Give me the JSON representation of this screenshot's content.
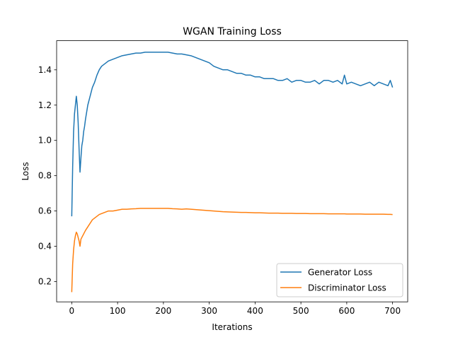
{
  "chart_data": {
    "type": "line",
    "title": "WGAN Training Loss",
    "xlabel": "Iterations",
    "ylabel": "Loss",
    "xlim": [
      -33,
      733
    ],
    "ylim": [
      0.085,
      1.565
    ],
    "xticks": [
      0,
      100,
      200,
      300,
      400,
      500,
      600,
      700
    ],
    "yticks": [
      0.2,
      0.4,
      0.6,
      0.8,
      1.0,
      1.2,
      1.4
    ],
    "ytick_labels": [
      "0.2",
      "0.4",
      "0.6",
      "0.8",
      "1.0",
      "1.2",
      "1.4"
    ],
    "grid": false,
    "legend_position": "lower right",
    "series": [
      {
        "name": "Generator Loss",
        "color": "#1f77b4",
        "x": [
          0,
          2,
          4,
          6,
          8,
          10,
          12,
          14,
          16,
          18,
          20,
          22,
          24,
          26,
          28,
          30,
          35,
          40,
          45,
          50,
          55,
          60,
          65,
          70,
          75,
          80,
          90,
          100,
          110,
          120,
          130,
          140,
          150,
          160,
          170,
          180,
          190,
          200,
          210,
          220,
          230,
          240,
          250,
          260,
          270,
          280,
          290,
          300,
          310,
          320,
          330,
          340,
          350,
          360,
          370,
          380,
          390,
          400,
          410,
          420,
          430,
          440,
          450,
          460,
          470,
          480,
          490,
          500,
          510,
          520,
          530,
          540,
          550,
          560,
          570,
          580,
          590,
          595,
          600,
          610,
          620,
          630,
          640,
          650,
          660,
          670,
          680,
          690,
          695,
          700
        ],
        "values": [
          0.57,
          0.85,
          1.05,
          1.15,
          1.2,
          1.25,
          1.2,
          1.1,
          0.95,
          0.82,
          0.9,
          0.97,
          1.0,
          1.05,
          1.08,
          1.12,
          1.2,
          1.25,
          1.3,
          1.33,
          1.37,
          1.4,
          1.42,
          1.43,
          1.44,
          1.45,
          1.46,
          1.47,
          1.48,
          1.485,
          1.49,
          1.495,
          1.495,
          1.5,
          1.5,
          1.5,
          1.5,
          1.5,
          1.5,
          1.495,
          1.49,
          1.49,
          1.485,
          1.48,
          1.47,
          1.46,
          1.45,
          1.44,
          1.42,
          1.41,
          1.4,
          1.4,
          1.39,
          1.38,
          1.38,
          1.37,
          1.37,
          1.36,
          1.36,
          1.35,
          1.35,
          1.35,
          1.34,
          1.34,
          1.35,
          1.33,
          1.34,
          1.34,
          1.33,
          1.33,
          1.34,
          1.32,
          1.34,
          1.34,
          1.33,
          1.34,
          1.32,
          1.37,
          1.32,
          1.33,
          1.32,
          1.31,
          1.32,
          1.33,
          1.31,
          1.33,
          1.32,
          1.31,
          1.34,
          1.3
        ]
      },
      {
        "name": "Discriminator Loss",
        "color": "#ff7f0e",
        "x": [
          0,
          2,
          4,
          6,
          8,
          10,
          12,
          14,
          16,
          18,
          20,
          22,
          24,
          26,
          28,
          30,
          35,
          40,
          45,
          50,
          55,
          60,
          65,
          70,
          75,
          80,
          90,
          100,
          110,
          120,
          130,
          140,
          150,
          160,
          170,
          180,
          190,
          200,
          210,
          220,
          230,
          240,
          250,
          260,
          270,
          280,
          290,
          300,
          310,
          320,
          330,
          340,
          350,
          360,
          370,
          380,
          390,
          400,
          410,
          420,
          430,
          440,
          450,
          460,
          470,
          480,
          490,
          500,
          510,
          520,
          530,
          540,
          550,
          560,
          570,
          580,
          590,
          595,
          600,
          610,
          620,
          630,
          640,
          650,
          660,
          670,
          680,
          690,
          695,
          700
        ],
        "values": [
          0.14,
          0.3,
          0.38,
          0.43,
          0.46,
          0.48,
          0.47,
          0.45,
          0.43,
          0.4,
          0.44,
          0.45,
          0.46,
          0.47,
          0.48,
          0.49,
          0.51,
          0.53,
          0.55,
          0.56,
          0.57,
          0.58,
          0.585,
          0.59,
          0.595,
          0.6,
          0.6,
          0.605,
          0.61,
          0.61,
          0.612,
          0.613,
          0.615,
          0.615,
          0.615,
          0.615,
          0.615,
          0.615,
          0.615,
          0.613,
          0.612,
          0.61,
          0.612,
          0.61,
          0.608,
          0.606,
          0.604,
          0.602,
          0.6,
          0.598,
          0.596,
          0.595,
          0.594,
          0.593,
          0.592,
          0.592,
          0.591,
          0.59,
          0.59,
          0.589,
          0.588,
          0.588,
          0.588,
          0.587,
          0.587,
          0.587,
          0.586,
          0.586,
          0.586,
          0.585,
          0.585,
          0.585,
          0.585,
          0.584,
          0.584,
          0.584,
          0.584,
          0.584,
          0.583,
          0.583,
          0.583,
          0.583,
          0.582,
          0.582,
          0.582,
          0.582,
          0.582,
          0.581,
          0.581,
          0.58
        ]
      }
    ]
  }
}
